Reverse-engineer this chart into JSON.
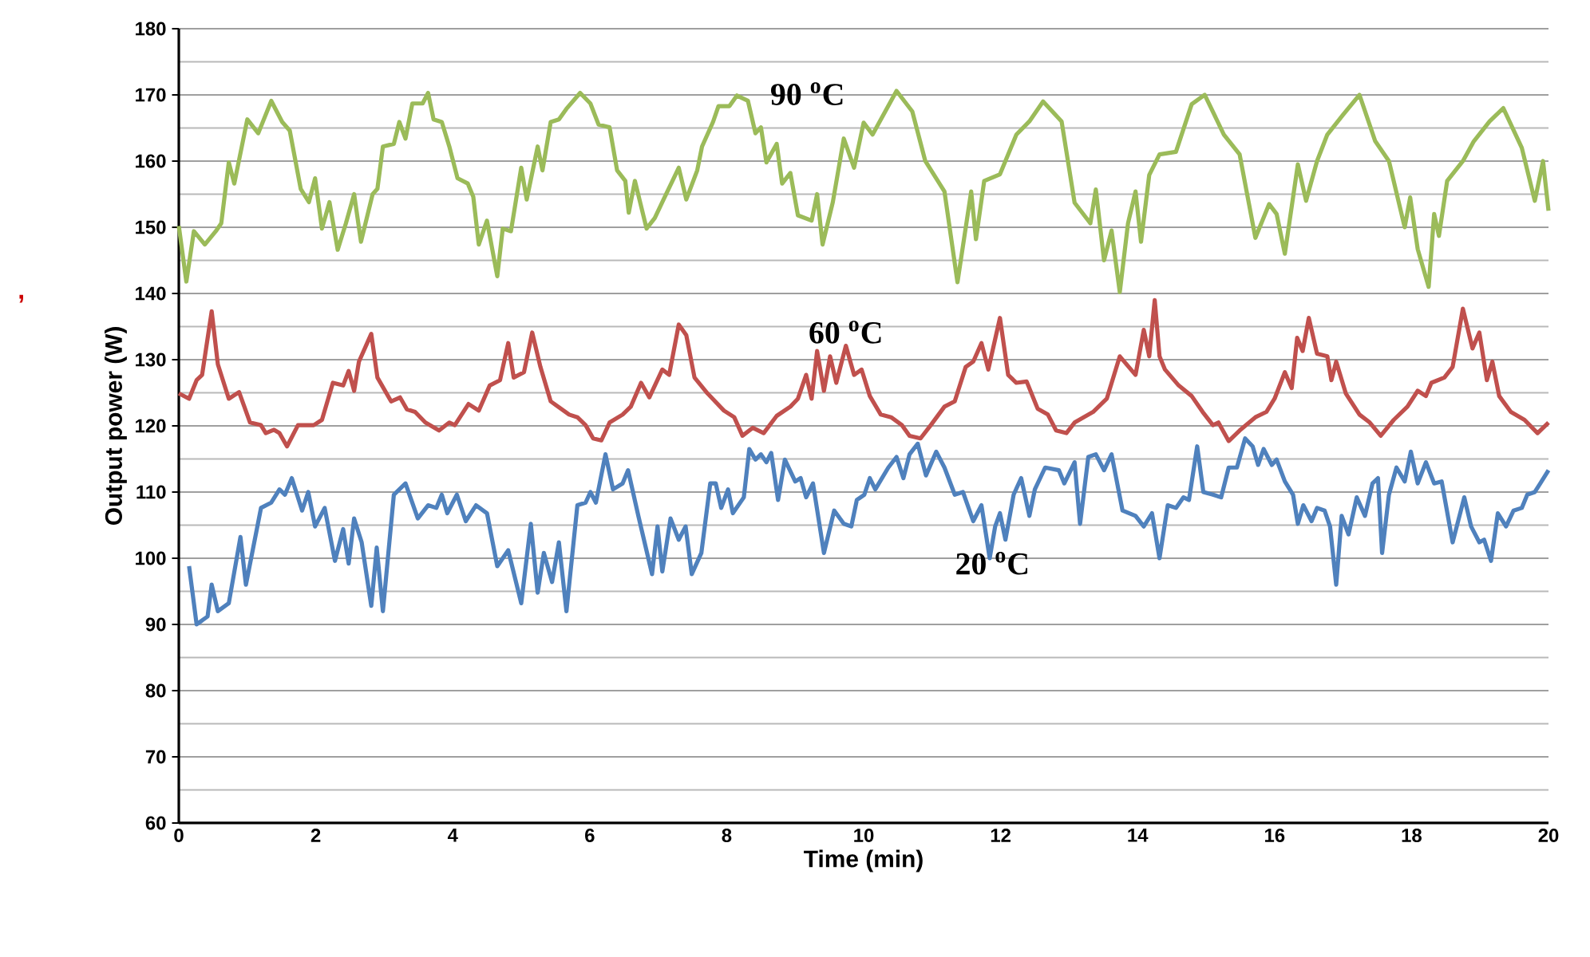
{
  "chart_data": {
    "type": "line",
    "xlabel": "Time (min)",
    "ylabel": "Output power (W)",
    "xlim": [
      0,
      20
    ],
    "xticks": [
      0,
      2,
      4,
      6,
      8,
      10,
      12,
      14,
      16,
      18,
      20
    ],
    "ylim": [
      60,
      180
    ],
    "yticks": [
      60,
      70,
      80,
      90,
      100,
      110,
      120,
      130,
      140,
      150,
      160,
      170,
      180
    ],
    "grid": "y",
    "marker": "none",
    "line_style": "solid",
    "annotations": [
      "90 $^{o}$C",
      "60 $^{o}$C",
      "20 $^{o}$C",
      ","
    ],
    "series": [
      {
        "color": "#9bbb59",
        "x": [
          0.0,
          0.11,
          0.22,
          0.38,
          0.54,
          0.62,
          0.73,
          0.81,
          1.0,
          1.16,
          1.35,
          1.51,
          1.62,
          1.78,
          1.9,
          1.99,
          2.09,
          2.2,
          2.32,
          2.44,
          2.56,
          2.66,
          2.83,
          2.9,
          2.98,
          3.14,
          3.22,
          3.31,
          3.41,
          3.56,
          3.64,
          3.72,
          3.84,
          3.95,
          4.07,
          4.22,
          4.3,
          4.38,
          4.5,
          4.65,
          4.73,
          4.85,
          5.0,
          5.08,
          5.24,
          5.31,
          5.43,
          5.55,
          5.66,
          5.86,
          6.01,
          6.13,
          6.29,
          6.4,
          6.52,
          6.57,
          6.66,
          6.83,
          6.95,
          7.06,
          7.3,
          7.41,
          7.57,
          7.64,
          7.8,
          7.88,
          8.04,
          8.15,
          8.31,
          8.42,
          8.5,
          8.58,
          8.73,
          8.81,
          8.93,
          9.04,
          9.24,
          9.32,
          9.4,
          9.55,
          9.71,
          9.86,
          10.0,
          10.13,
          10.48,
          10.71,
          10.9,
          11.18,
          11.37,
          11.57,
          11.64,
          11.76,
          11.99,
          12.23,
          12.42,
          12.62,
          12.89,
          13.08,
          13.31,
          13.39,
          13.51,
          13.62,
          13.74,
          13.86,
          13.97,
          14.05,
          14.17,
          14.32,
          14.56,
          14.79,
          14.98,
          15.26,
          15.49,
          15.72,
          15.92,
          16.03,
          16.15,
          16.34,
          16.46,
          16.62,
          16.77,
          17.0,
          17.24,
          17.47,
          17.67,
          17.9,
          17.98,
          18.09,
          18.25,
          18.33,
          18.4,
          18.52,
          18.75,
          18.91,
          19.14,
          19.34,
          19.61,
          19.8,
          19.92,
          20.0
        ],
        "values": [
          150.2,
          141.8,
          149.4,
          147.4,
          149.4,
          150.6,
          159.8,
          156.6,
          166.3,
          164.2,
          169.1,
          165.9,
          164.6,
          155.8,
          153.8,
          157.4,
          149.8,
          153.8,
          146.6,
          150.6,
          155,
          147.8,
          155,
          155.8,
          162.2,
          162.6,
          165.9,
          163.4,
          168.7,
          168.7,
          170.3,
          166.3,
          165.9,
          162.2,
          157.4,
          156.6,
          154.6,
          147.4,
          151,
          142.6,
          149.8,
          149.4,
          159,
          154.2,
          162.2,
          158.6,
          165.9,
          166.3,
          167.9,
          170.3,
          168.7,
          165.5,
          165.1,
          158.6,
          157,
          152.2,
          157,
          149.8,
          151.4,
          153.8,
          159,
          154.2,
          158.6,
          162.2,
          165.9,
          168.3,
          168.3,
          169.9,
          169.1,
          164.2,
          165.1,
          159.8,
          162.6,
          156.6,
          158.2,
          151.8,
          151,
          155,
          147.4,
          153.8,
          163.4,
          159,
          165.8,
          164,
          170.6,
          167.5,
          160,
          155.4,
          141.7,
          155.4,
          148.2,
          157,
          158,
          164,
          166,
          169,
          166,
          153.7,
          150.6,
          155.7,
          145,
          149.5,
          140.2,
          150.6,
          155.4,
          147.8,
          157.9,
          161,
          161.4,
          168.6,
          170,
          164,
          161,
          148.4,
          153.5,
          152,
          146,
          159.5,
          154,
          160,
          164,
          167,
          170,
          163,
          160,
          150,
          154.5,
          146.7,
          141,
          152,
          148.7,
          157,
          160,
          163,
          166,
          168,
          162,
          154,
          160,
          152.5
        ]
      },
      {
        "color": "#c0504d",
        "x": [
          0.0,
          0.15,
          0.26,
          0.34,
          0.48,
          0.57,
          0.73,
          0.88,
          1.04,
          1.2,
          1.27,
          1.39,
          1.47,
          1.58,
          1.74,
          1.97,
          2.09,
          2.25,
          2.4,
          2.48,
          2.56,
          2.63,
          2.81,
          2.9,
          3.1,
          3.23,
          3.33,
          3.45,
          3.6,
          3.8,
          3.95,
          4.03,
          4.23,
          4.38,
          4.54,
          4.69,
          4.81,
          4.89,
          5.04,
          5.16,
          5.28,
          5.43,
          5.7,
          5.82,
          5.94,
          6.05,
          6.17,
          6.29,
          6.48,
          6.6,
          6.75,
          6.87,
          7.06,
          7.16,
          7.3,
          7.41,
          7.53,
          7.72,
          7.96,
          8.11,
          8.23,
          8.38,
          8.54,
          8.73,
          8.93,
          9.04,
          9.16,
          9.24,
          9.32,
          9.42,
          9.51,
          9.6,
          9.74,
          9.86,
          9.97,
          10.09,
          10.25,
          10.4,
          10.56,
          10.67,
          10.83,
          10.98,
          11.18,
          11.33,
          11.49,
          11.6,
          11.72,
          11.82,
          11.99,
          12.11,
          12.23,
          12.38,
          12.54,
          12.69,
          12.81,
          12.96,
          13.08,
          13.35,
          13.55,
          13.74,
          13.97,
          14.09,
          14.17,
          14.25,
          14.32,
          14.4,
          14.6,
          14.79,
          14.95,
          15.1,
          15.18,
          15.33,
          15.49,
          15.72,
          15.88,
          16.0,
          16.15,
          16.25,
          16.33,
          16.41,
          16.5,
          16.62,
          16.77,
          16.83,
          16.9,
          17.04,
          17.24,
          17.39,
          17.55,
          17.74,
          17.94,
          18.09,
          18.21,
          18.29,
          18.48,
          18.6,
          18.75,
          18.89,
          18.99,
          19.1,
          19.18,
          19.28,
          19.45,
          19.65,
          19.84,
          20.0
        ],
        "values": [
          124.9,
          124.1,
          126.9,
          127.7,
          137.3,
          129.3,
          124.1,
          125.1,
          120.5,
          120.1,
          118.9,
          119.4,
          118.9,
          116.9,
          120.1,
          120.1,
          120.9,
          126.5,
          126.1,
          128.3,
          125.3,
          129.7,
          133.9,
          127.3,
          123.7,
          124.3,
          122.5,
          122.1,
          120.5,
          119.3,
          120.5,
          120.1,
          123.3,
          122.3,
          126.1,
          126.9,
          132.5,
          127.3,
          128.1,
          134.1,
          128.9,
          123.7,
          121.7,
          121.3,
          120.1,
          118.1,
          117.8,
          120.5,
          121.7,
          122.9,
          126.5,
          124.3,
          128.5,
          127.7,
          135.3,
          133.7,
          127.3,
          124.9,
          122.3,
          121.3,
          118.5,
          119.7,
          118.9,
          121.5,
          122.9,
          124.1,
          127.7,
          124.1,
          131.3,
          125.3,
          130.5,
          126.5,
          132.1,
          127.7,
          128.5,
          124.5,
          121.7,
          121.3,
          120.1,
          118.5,
          118.1,
          120.1,
          122.9,
          123.7,
          128.9,
          129.7,
          132.5,
          128.5,
          136.3,
          127.7,
          126.5,
          126.7,
          122.6,
          121.7,
          119.3,
          118.9,
          120.5,
          122.1,
          124.1,
          130.5,
          127.7,
          134.5,
          130.5,
          139.0,
          130.5,
          128.5,
          126.1,
          124.5,
          122.1,
          120.1,
          120.5,
          117.7,
          119.3,
          121.3,
          122.1,
          124.1,
          128.1,
          125.7,
          133.3,
          131.3,
          136.3,
          130.9,
          130.5,
          126.9,
          129.7,
          124.9,
          121.7,
          120.5,
          118.5,
          120.9,
          122.9,
          125.3,
          124.5,
          126.5,
          127.3,
          128.9,
          137.7,
          131.7,
          134.1,
          126.9,
          129.7,
          124.5,
          122.1,
          120.9,
          118.9,
          120.5
        ]
      },
      {
        "color": "#4f81bd",
        "x": [
          0.15,
          0.26,
          0.42,
          0.48,
          0.57,
          0.73,
          0.9,
          0.98,
          1.2,
          1.35,
          1.47,
          1.55,
          1.65,
          1.8,
          1.89,
          1.99,
          2.13,
          2.28,
          2.4,
          2.48,
          2.56,
          2.67,
          2.81,
          2.89,
          2.98,
          3.14,
          3.31,
          3.49,
          3.64,
          3.76,
          3.84,
          3.92,
          4.06,
          4.19,
          4.34,
          4.5,
          4.65,
          4.81,
          5.0,
          5.14,
          5.24,
          5.33,
          5.45,
          5.55,
          5.66,
          5.82,
          5.94,
          6.01,
          6.09,
          6.23,
          6.34,
          6.48,
          6.56,
          6.71,
          6.91,
          6.99,
          7.06,
          7.18,
          7.3,
          7.4,
          7.49,
          7.63,
          7.76,
          7.84,
          7.92,
          8.02,
          8.09,
          8.25,
          8.33,
          8.42,
          8.5,
          8.58,
          8.65,
          8.75,
          8.85,
          9.0,
          9.08,
          9.16,
          9.26,
          9.42,
          9.57,
          9.71,
          9.82,
          9.9,
          10.01,
          10.09,
          10.17,
          10.36,
          10.48,
          10.58,
          10.67,
          10.79,
          10.91,
          11.06,
          11.18,
          11.33,
          11.45,
          11.6,
          11.72,
          11.84,
          11.92,
          11.99,
          12.07,
          12.19,
          12.3,
          12.42,
          12.5,
          12.65,
          12.85,
          12.93,
          13.08,
          13.16,
          13.28,
          13.39,
          13.51,
          13.62,
          13.78,
          13.97,
          14.09,
          14.21,
          14.32,
          14.44,
          14.56,
          14.67,
          14.75,
          14.87,
          14.96,
          15.1,
          15.22,
          15.33,
          15.45,
          15.57,
          15.68,
          15.76,
          15.84,
          15.96,
          16.03,
          16.15,
          16.27,
          16.34,
          16.42,
          16.54,
          16.62,
          16.73,
          16.81,
          16.9,
          16.98,
          17.08,
          17.2,
          17.32,
          17.43,
          17.51,
          17.57,
          17.67,
          17.78,
          17.9,
          17.99,
          18.09,
          18.21,
          18.33,
          18.44,
          18.6,
          18.77,
          18.87,
          18.99,
          19.06,
          19.16,
          19.26,
          19.38,
          19.49,
          19.61,
          19.69,
          19.8,
          19.88,
          20.0
        ],
        "values": [
          98.8,
          90.0,
          91.2,
          96.0,
          92.0,
          93.2,
          103.2,
          96.0,
          107.6,
          108.4,
          110.4,
          109.6,
          112.1,
          107.2,
          110.0,
          104.8,
          107.6,
          99.6,
          104.4,
          99.2,
          106.0,
          102.4,
          92.8,
          101.6,
          92.0,
          109.6,
          111.3,
          106.0,
          108.0,
          107.6,
          109.6,
          106.8,
          109.6,
          105.6,
          108.0,
          106.8,
          98.8,
          101.2,
          93.2,
          105.2,
          94.8,
          100.8,
          96.4,
          102.4,
          92.0,
          108.0,
          108.4,
          110.0,
          108.4,
          115.7,
          110.4,
          111.3,
          113.3,
          106.4,
          97.6,
          104.8,
          98.0,
          106.0,
          102.8,
          104.8,
          97.6,
          100.8,
          111.3,
          111.3,
          107.6,
          110.4,
          106.8,
          109.2,
          116.5,
          114.9,
          115.7,
          114.5,
          115.9,
          108.8,
          114.9,
          111.6,
          112.1,
          109.2,
          111.3,
          100.8,
          107.2,
          105.2,
          104.8,
          108.8,
          109.6,
          112.1,
          110.4,
          113.7,
          115.3,
          112.1,
          115.7,
          117.3,
          112.5,
          116.1,
          113.7,
          109.6,
          110.0,
          105.6,
          108.0,
          100.0,
          104.8,
          106.8,
          102.8,
          109.6,
          112.1,
          106.4,
          110.4,
          113.7,
          113.3,
          111.3,
          114.5,
          105.2,
          115.3,
          115.7,
          113.3,
          115.7,
          107.2,
          106.4,
          104.8,
          106.8,
          100.0,
          108.0,
          107.6,
          109.2,
          108.8,
          116.9,
          110.0,
          109.6,
          109.2,
          113.7,
          113.7,
          118.1,
          116.9,
          114.1,
          116.5,
          114.1,
          114.9,
          111.6,
          109.6,
          105.2,
          108.0,
          105.6,
          107.6,
          107.2,
          104.8,
          96.0,
          106.4,
          103.6,
          109.2,
          106.4,
          111.3,
          112.1,
          100.8,
          109.6,
          113.7,
          111.6,
          116.1,
          111.3,
          114.5,
          111.3,
          111.6,
          102.4,
          109.2,
          104.8,
          102.4,
          102.8,
          99.6,
          106.8,
          104.8,
          107.2,
          107.6,
          109.6,
          110.0,
          111.3,
          113.3
        ]
      }
    ]
  }
}
